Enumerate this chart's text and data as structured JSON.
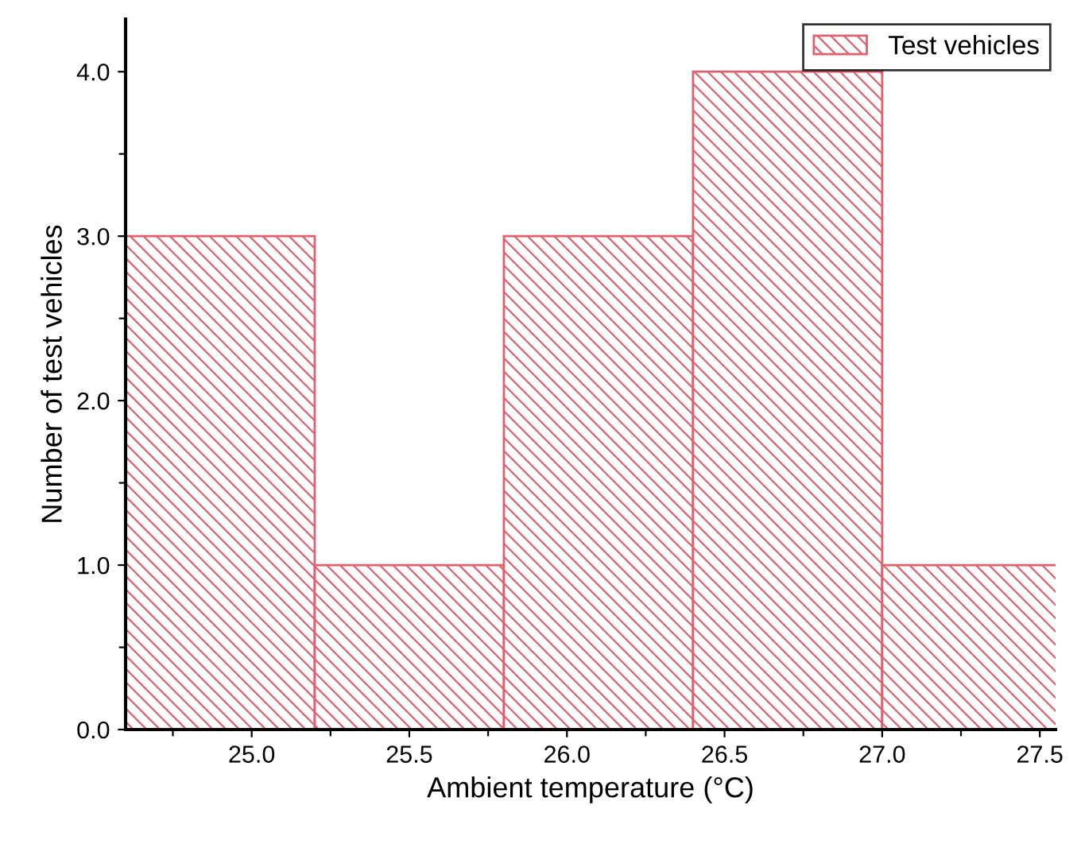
{
  "chart_data": {
    "type": "histogram",
    "xlabel": "Ambient temperature (°C)",
    "ylabel": "Number of test vehicles",
    "bins": [
      24.6,
      25.2,
      25.8,
      26.4,
      27.0,
      27.6
    ],
    "series": [
      {
        "name": "Test vehicles",
        "color": "#e0606e",
        "values": [
          3,
          1,
          3,
          4,
          1
        ]
      }
    ],
    "xlim": [
      24.6,
      27.55
    ],
    "ylim": [
      0,
      4.32
    ],
    "xticks": [
      {
        "value": 24.75,
        "label": null
      },
      {
        "value": 25.0,
        "label": "25.0"
      },
      {
        "value": 25.25,
        "label": null
      },
      {
        "value": 25.5,
        "label": "25.5"
      },
      {
        "value": 25.75,
        "label": null
      },
      {
        "value": 26.0,
        "label": "26.0"
      },
      {
        "value": 26.25,
        "label": null
      },
      {
        "value": 26.5,
        "label": "26.5"
      },
      {
        "value": 26.75,
        "label": null
      },
      {
        "value": 27.0,
        "label": "27.0"
      },
      {
        "value": 27.25,
        "label": null
      },
      {
        "value": 27.5,
        "label": "27.5"
      }
    ],
    "yticks": [
      {
        "value": 0,
        "label": "0.0"
      },
      {
        "value": 0.5,
        "label": null
      },
      {
        "value": 1,
        "label": "1.0"
      },
      {
        "value": 1.5,
        "label": null
      },
      {
        "value": 2,
        "label": "2.0"
      },
      {
        "value": 2.5,
        "label": null
      },
      {
        "value": 3,
        "label": "3.0"
      },
      {
        "value": 3.5,
        "label": null
      },
      {
        "value": 4,
        "label": "4.0"
      }
    ],
    "grid": false,
    "legend": "top right"
  }
}
